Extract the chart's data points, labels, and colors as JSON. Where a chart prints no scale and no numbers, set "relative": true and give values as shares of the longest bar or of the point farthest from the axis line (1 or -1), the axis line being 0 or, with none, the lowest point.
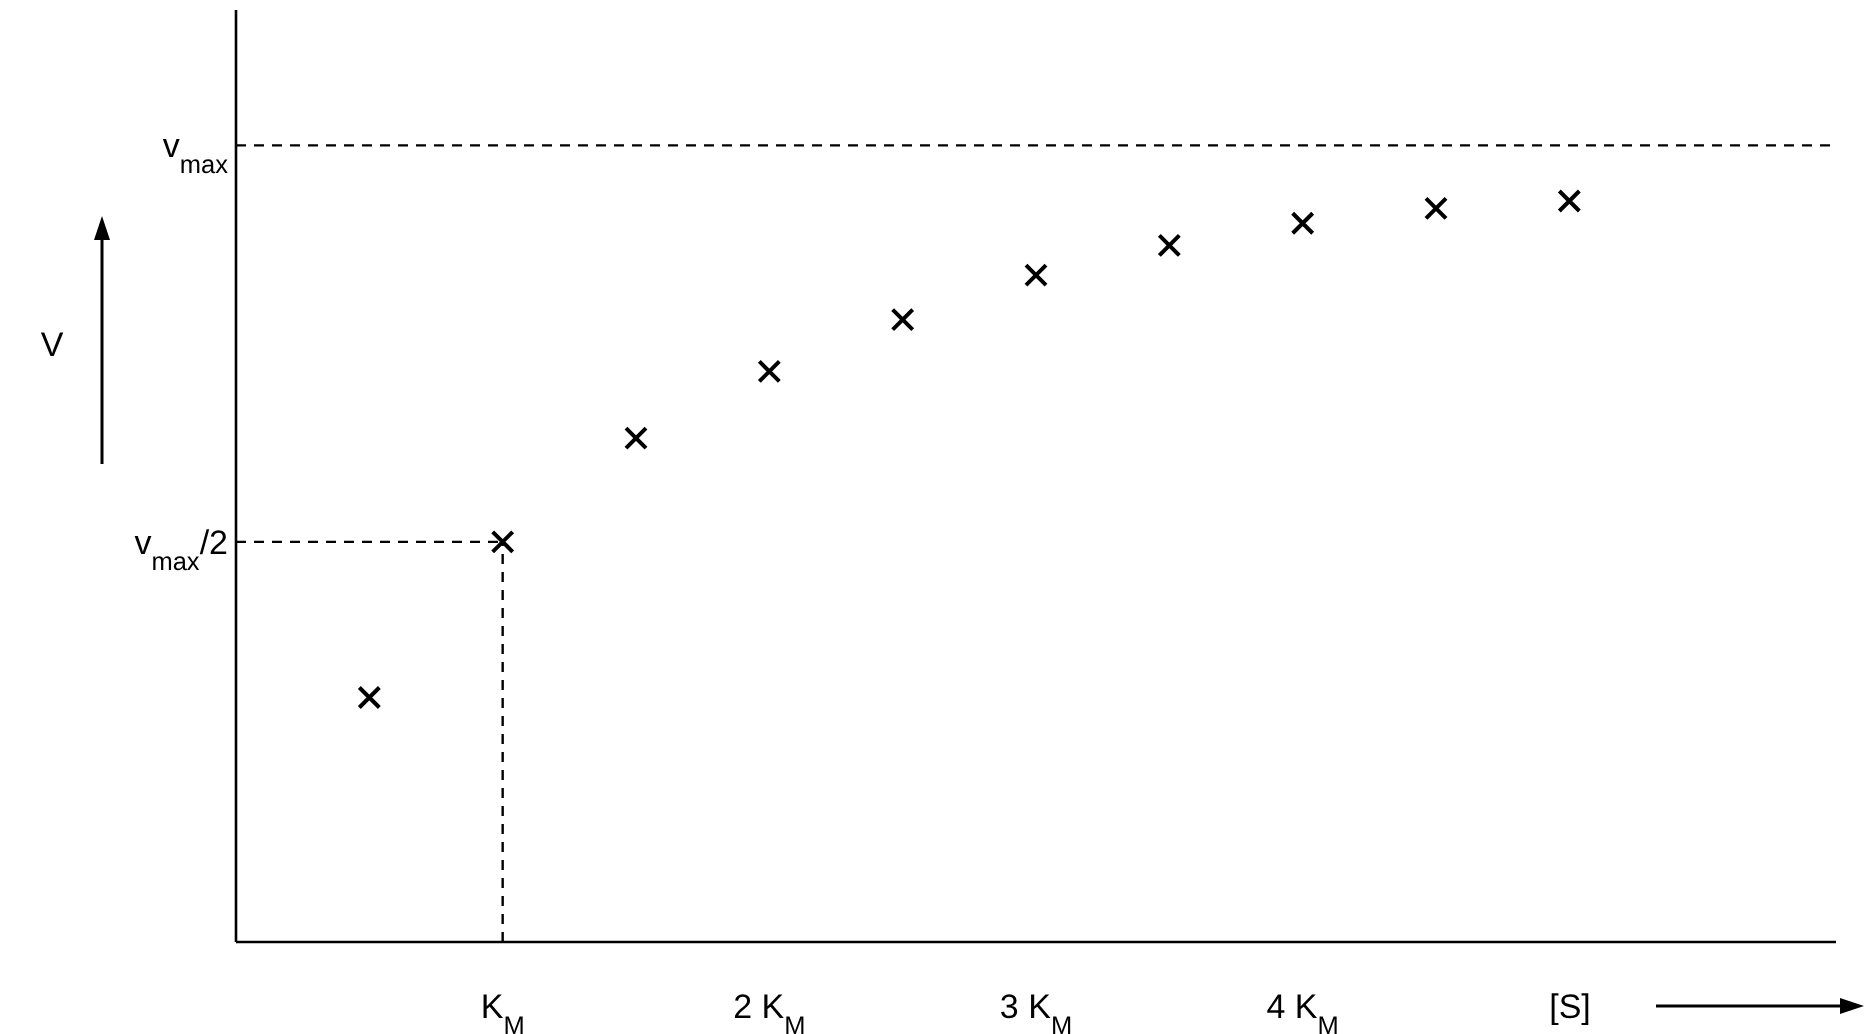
{
  "chart_data": {
    "type": "scatter",
    "xlabel": "[S]",
    "relative": true,
    "x": [
      0.5,
      1,
      1.5,
      2,
      2.5,
      3,
      3.5,
      4,
      4.5,
      5
    ],
    "series": [
      {
        "color": "#000000",
        "marker": "cross",
        "values": [
          0.33,
          0.54,
          0.68,
          0.77,
          0.84,
          0.9,
          0.94,
          0.97,
          0.99,
          1
        ]
      }
    ],
    "ref_lines": [
      {
        "axis": "y",
        "value": 1.075,
        "label": "v$_{max}$",
        "color": "#000000",
        "line_style": "dashed"
      },
      {
        "axis": "y",
        "value": 0.54,
        "label": "v$_{max}$/2",
        "color": "#000000",
        "line_style": "dashed"
      },
      {
        "axis": "x",
        "value": 1,
        "color": "#000000",
        "line_style": "dashed"
      }
    ],
    "annotations": [
      "V"
    ],
    "xlim": [
      0,
      6
    ],
    "xticks": [
      {
        "value": 1,
        "label": "K$_{M}$"
      },
      {
        "value": 2,
        "label": "2 K$_{M}$"
      },
      {
        "value": 3,
        "label": "3 K$_{M}$"
      },
      {
        "value": 4,
        "label": "4 K$_{M}$"
      }
    ]
  }
}
